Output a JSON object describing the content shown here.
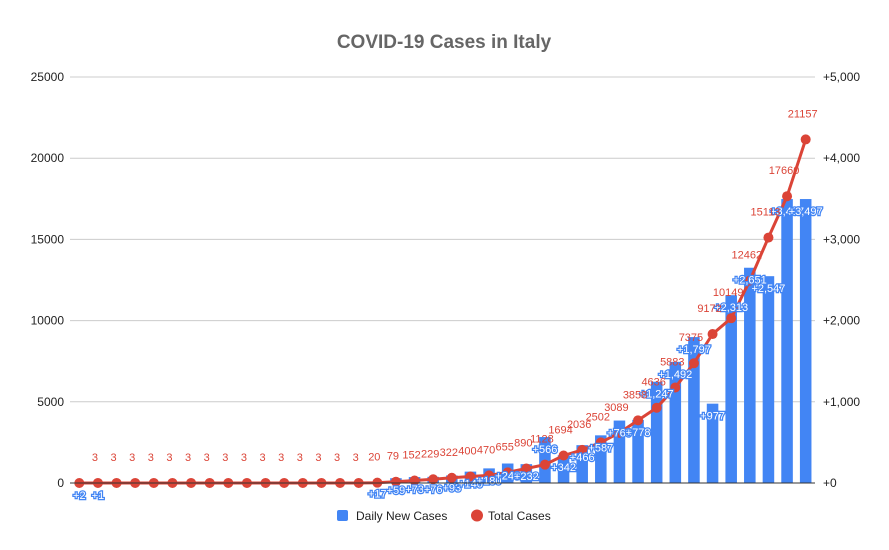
{
  "chart_data": {
    "type": "bar+line",
    "title": "COVID-19 Cases in Italy",
    "xlabel": "",
    "ylabel_left": "",
    "ylabel_right": "",
    "ylim_left": [
      0,
      25000
    ],
    "ylim_right": [
      0,
      5000
    ],
    "left_ticks": [
      "0",
      "5000",
      "10000",
      "15000",
      "20000",
      "25000"
    ],
    "right_ticks": [
      "+0",
      "+1,000",
      "+2,000",
      "+3,000",
      "+4,000",
      "+5,000"
    ],
    "grid": true,
    "legend_position": "bottom",
    "n_points": 40,
    "series": [
      {
        "name": "Daily New Cases",
        "type": "bar",
        "axis": "right",
        "color": "#4285f4",
        "values": [
          2,
          1,
          0,
          0,
          0,
          0,
          0,
          0,
          0,
          0,
          0,
          0,
          0,
          0,
          0,
          0,
          17,
          59,
          73,
          76,
          93,
          140,
          180,
          240,
          232,
          566,
          342,
          466,
          587,
          769,
          778,
          1247,
          1492,
          1797,
          977,
          2313,
          2651,
          2547,
          3497,
          3497
        ],
        "labels": [
          "+2",
          "+1",
          "",
          "",
          "",
          "",
          "",
          "",
          "",
          "",
          "",
          "",
          "",
          "",
          "",
          "",
          "+17",
          "+59",
          "+73",
          "+76",
          "+93",
          "+140",
          "+180",
          "+240",
          "+232",
          "+566",
          "+342",
          "+466",
          "+587",
          "+769",
          "+778",
          "+1,247",
          "+1,492",
          "+1,797",
          "+977",
          "+2,313",
          "+2,651",
          "+2,547",
          "+3,497",
          "+3,497"
        ]
      },
      {
        "name": "Total Cases",
        "type": "line",
        "axis": "left",
        "color": "#db4437",
        "values": [
          0,
          3,
          3,
          3,
          3,
          3,
          3,
          3,
          3,
          3,
          3,
          3,
          3,
          3,
          3,
          3,
          20,
          79,
          152,
          229,
          322,
          400,
          470,
          655,
          890,
          1128,
          1694,
          2036,
          2502,
          3089,
          3858,
          4636,
          5883,
          7375,
          9172,
          10149,
          12462,
          15113,
          17660,
          21157
        ],
        "labels": [
          "",
          "3",
          "3",
          "3",
          "3",
          "3",
          "3",
          "3",
          "3",
          "3",
          "3",
          "3",
          "3",
          "3",
          "3",
          "3",
          "20",
          "79",
          "152",
          "229",
          "322",
          "400",
          "470",
          "655",
          "890",
          "1128",
          "1694",
          "2036",
          "2502",
          "3089",
          "3858",
          "4636",
          "5883",
          "7375",
          "9172",
          "10149",
          "12462",
          "15113",
          "17660",
          "21157"
        ]
      }
    ]
  }
}
